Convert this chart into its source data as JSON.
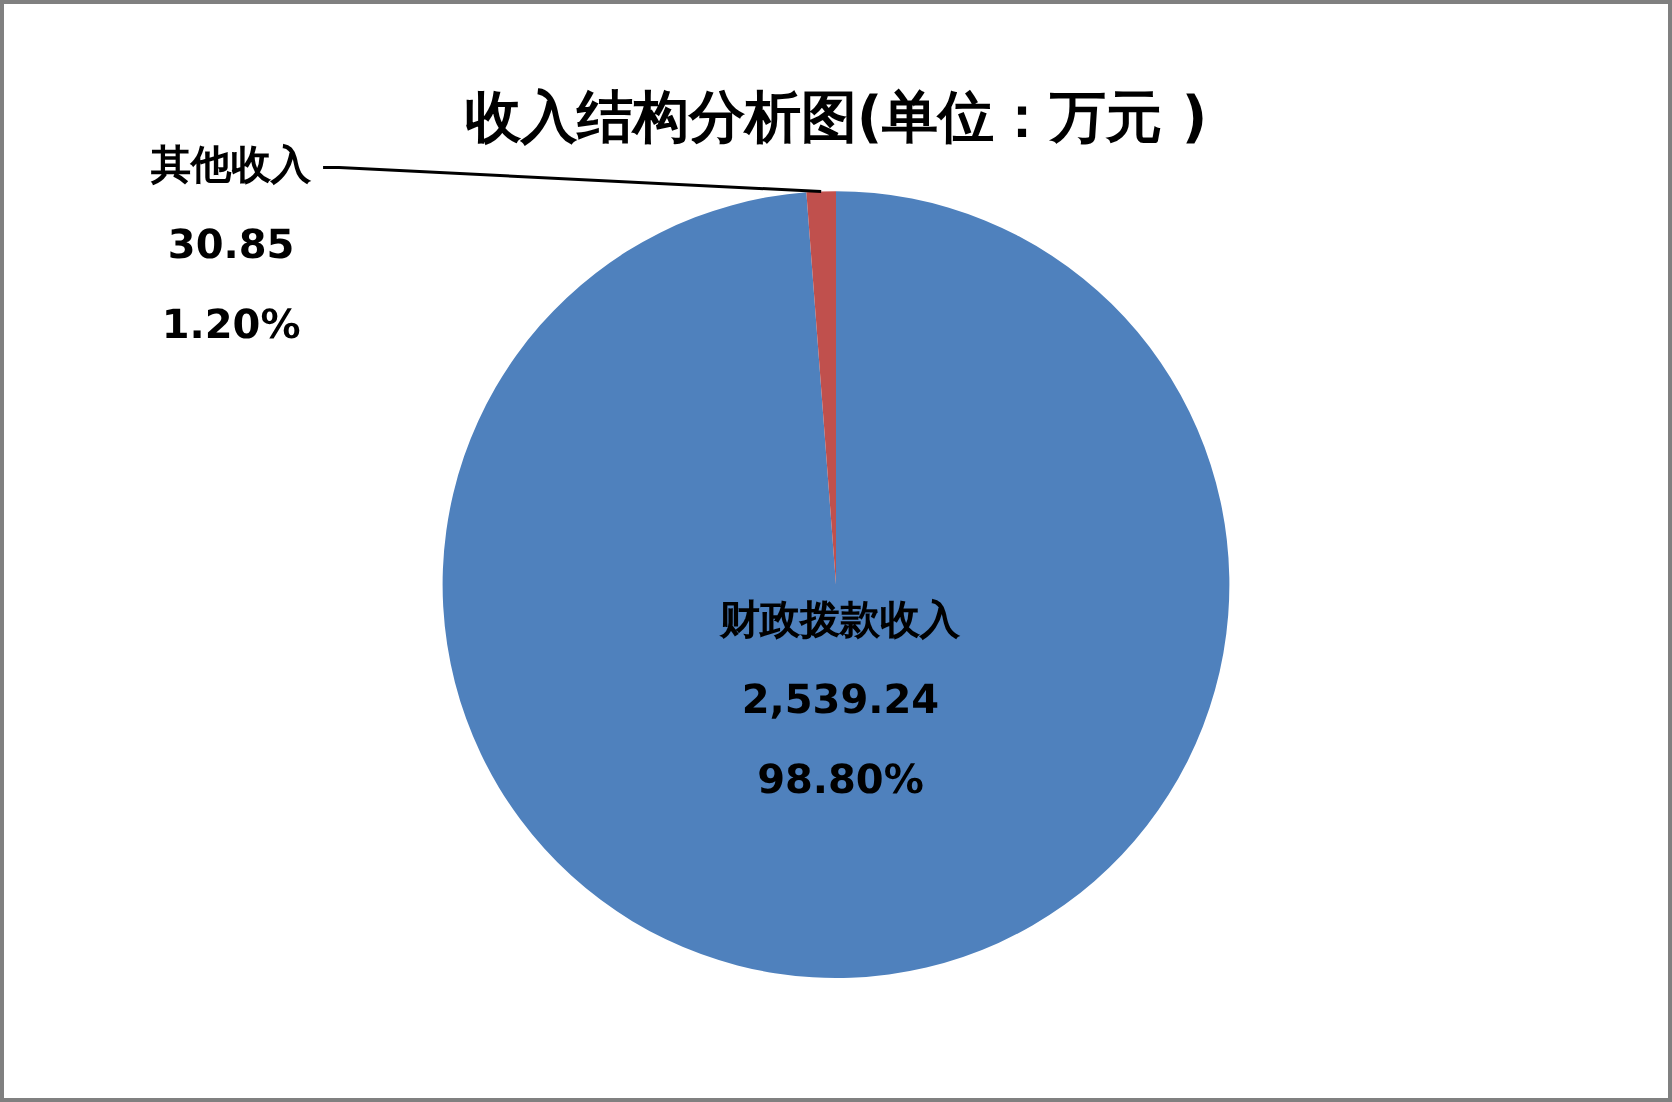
{
  "chart_data": {
    "type": "pie",
    "title": "收入结构分析图(单位：万元 )",
    "categories": [
      "财政拨款收入",
      "其他收入"
    ],
    "values": [
      2539.24,
      30.85
    ],
    "colors": [
      "#4f81bd",
      "#c0504d"
    ],
    "value_labels": [
      "2,539.24\n98.80%",
      "30.85\n1.20%"
    ]
  }
}
